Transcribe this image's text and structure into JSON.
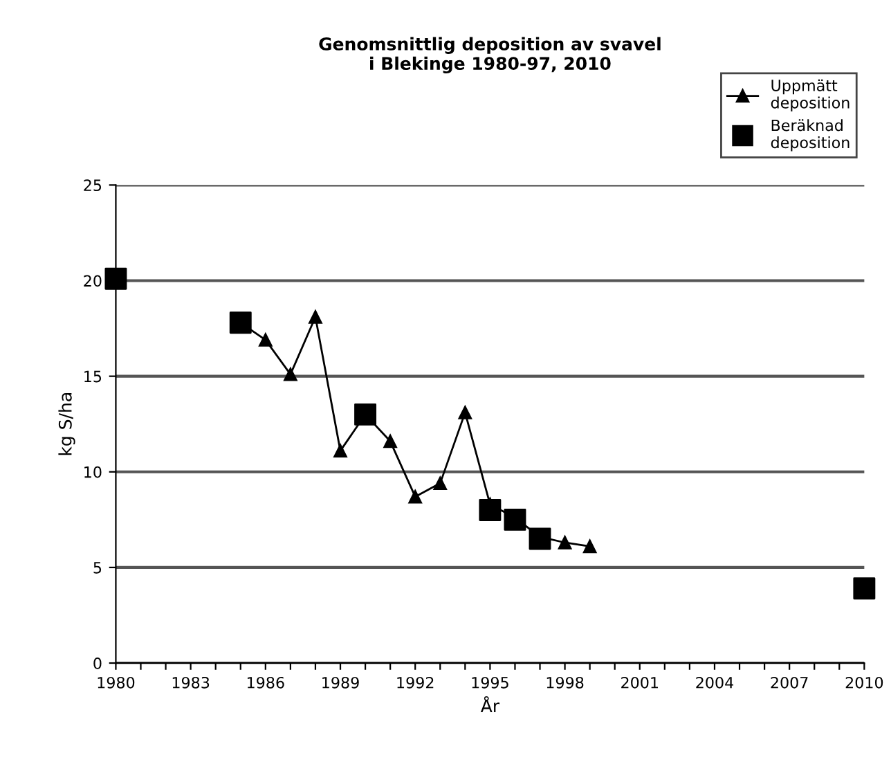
{
  "chart_data": {
    "type": "line",
    "title": "Genomsnittlig deposition av svavel\ni Blekinge 1980-97, 2010",
    "xlabel": "År",
    "ylabel": "kg S/ha",
    "series": [
      {
        "name": "Uppmätt\ndeposition",
        "marker": "triangle",
        "color": "#000000",
        "x": [
          1985,
          1986,
          1987,
          1988,
          1989,
          1990,
          1991,
          1992,
          1993,
          1994,
          1995,
          1996,
          1997,
          1998,
          1999
        ],
        "values": [
          17.8,
          16.9,
          15.1,
          18.1,
          11.1,
          13.0,
          11.6,
          8.7,
          9.4,
          13.1,
          8.3,
          7.6,
          6.6,
          6.3,
          6.1
        ]
      },
      {
        "name": "Beräknad\ndeposition",
        "type": "scatter",
        "marker": "square",
        "color": "#000000",
        "x": [
          1980,
          1985,
          1990,
          1995,
          1996,
          1997,
          2010
        ],
        "values": [
          20.1,
          17.8,
          13.0,
          8.0,
          7.5,
          6.5,
          3.9
        ]
      }
    ],
    "xlim": [
      1980,
      2010
    ],
    "xticks": [
      1980,
      {
        "value": 1981,
        "label": null
      },
      {
        "value": 1982,
        "label": null
      },
      1983,
      {
        "value": 1984,
        "label": null
      },
      {
        "value": 1985,
        "label": null
      },
      1986,
      {
        "value": 1987,
        "label": null
      },
      {
        "value": 1988,
        "label": null
      },
      1989,
      {
        "value": 1990,
        "label": null
      },
      {
        "value": 1991,
        "label": null
      },
      1992,
      {
        "value": 1993,
        "label": null
      },
      {
        "value": 1994,
        "label": null
      },
      1995,
      {
        "value": 1996,
        "label": null
      },
      {
        "value": 1997,
        "label": null
      },
      1998,
      {
        "value": 1999,
        "label": null
      },
      {
        "value": 2000,
        "label": null
      },
      2001,
      {
        "value": 2002,
        "label": null
      },
      {
        "value": 2003,
        "label": null
      },
      2004,
      {
        "value": 2005,
        "label": null
      },
      {
        "value": 2006,
        "label": null
      },
      2007,
      {
        "value": 2008,
        "label": null
      },
      {
        "value": 2009,
        "label": null
      },
      2010
    ],
    "ylim": [
      0,
      25
    ],
    "yticks": [
      0,
      5,
      10,
      15,
      20,
      25
    ],
    "grid": "y",
    "legend": "top right"
  }
}
